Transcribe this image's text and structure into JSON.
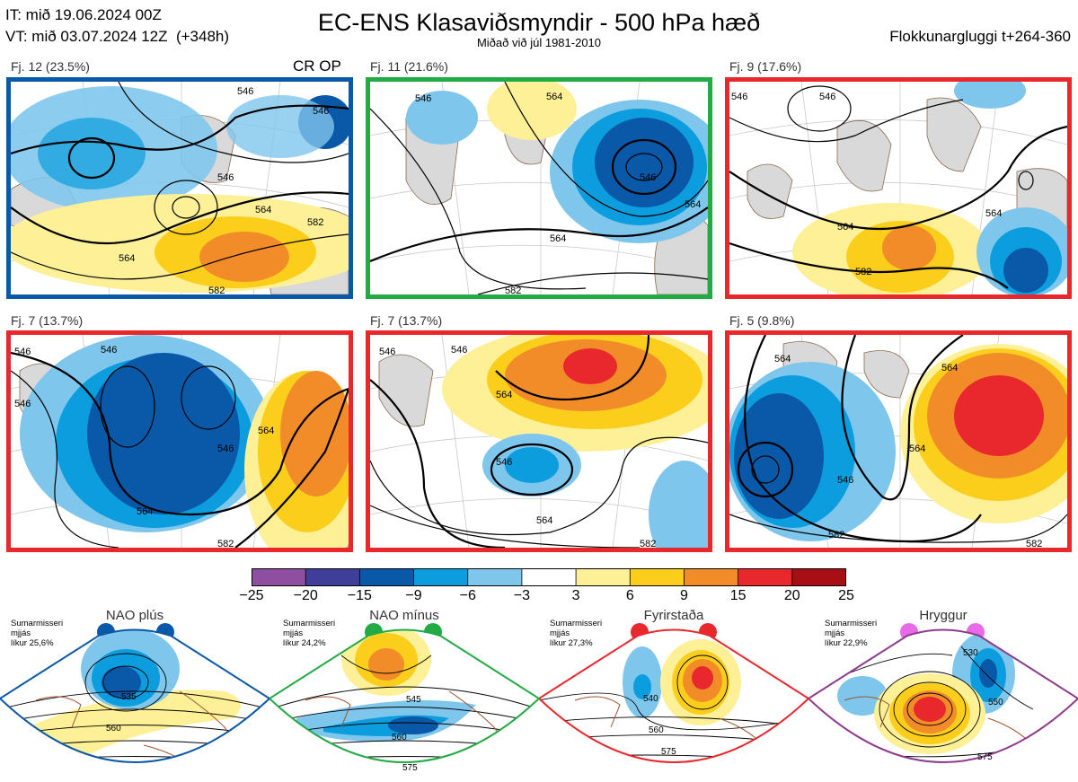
{
  "header": {
    "init_time": "IT: mið 19.06.2024 00Z",
    "valid_time": "VT: mið 03.07.2024 12Z",
    "lead": "(+348h)",
    "title": "EC-ENS Klasaviðsmyndir - 500 hPa hæð",
    "subtitle": "Miðað við júl 1981-2010",
    "window": "Flokkunargluggi t+264-360"
  },
  "clusters": [
    {
      "label": "Fj. 12 (23.5%)",
      "tag": "CR OP",
      "border": "#0a58a8",
      "contours": [
        "546",
        "546",
        "546",
        "564",
        "564",
        "582",
        "582"
      ]
    },
    {
      "label": "Fj. 11 (21.6%)",
      "tag": "",
      "border": "#22aa44",
      "contours": [
        "546",
        "564",
        "546",
        "564",
        "564",
        "582"
      ]
    },
    {
      "label": "Fj. 9 (17.6%)",
      "tag": "",
      "border": "#e8282d",
      "contours": [
        "546",
        "546",
        "564",
        "564",
        "582"
      ]
    },
    {
      "label": "Fj. 7 (13.7%)",
      "tag": "",
      "border": "#e8282d",
      "contours": [
        "546",
        "546",
        "546",
        "546",
        "564",
        "564",
        "582"
      ]
    },
    {
      "label": "Fj. 7 (13.7%)",
      "tag": "",
      "border": "#e8282d",
      "contours": [
        "546",
        "564",
        "546",
        "546",
        "564",
        "582"
      ]
    },
    {
      "label": "Fj. 5 (9.8%)",
      "tag": "",
      "border": "#e8282d",
      "contours": [
        "564",
        "546",
        "564",
        "564",
        "582",
        "582"
      ]
    }
  ],
  "colorbar": {
    "colors": [
      "#8e4fa0",
      "#3f3f9a",
      "#0a58a8",
      "#0b9ddd",
      "#7fc6ec",
      "#ffffff",
      "#fdf097",
      "#fbce1c",
      "#f28c28",
      "#e8282d",
      "#a80f14"
    ],
    "ticks": [
      "−25",
      "−20",
      "−15",
      "−9",
      "−6",
      "−3",
      "3",
      "6",
      "9",
      "15",
      "20",
      "25"
    ]
  },
  "regimes": [
    {
      "name": "NAO plús",
      "season": "Sumarmisseri",
      "line2": "mjjás",
      "prob": "líkur 25,6%",
      "color": "#0a58a8",
      "contours": [
        "535",
        "560"
      ]
    },
    {
      "name": "NAO mínus",
      "season": "Sumarmisseri",
      "line2": "mjjás",
      "prob": "líkur 24,2%",
      "color": "#22aa44",
      "contours": [
        "545",
        "560",
        "575"
      ]
    },
    {
      "name": "Fyrirstaða",
      "season": "Sumarmisseri",
      "line2": "mjjás",
      "prob": "líkur 27,3%",
      "color": "#e8282d",
      "contours": [
        "540",
        "560",
        "575"
      ]
    },
    {
      "name": "Hryggur",
      "season": "Sumarmisseri",
      "line2": "mjjás",
      "prob": "líkur 22,9%",
      "color": "#e86ae8",
      "contours": [
        "530",
        "550",
        "575"
      ]
    }
  ]
}
